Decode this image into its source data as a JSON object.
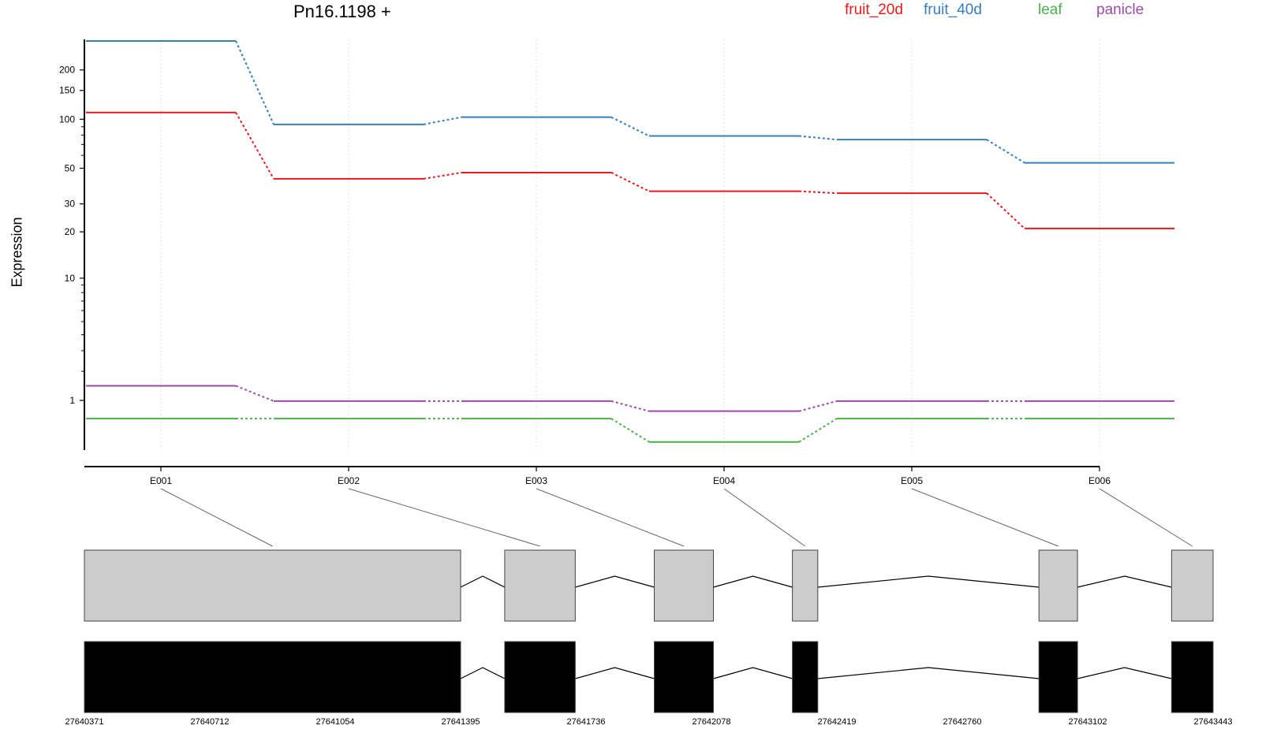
{
  "chart_data": {
    "type": "line",
    "title": "Pn16.1198 +",
    "ylabel": "Expression",
    "xlabel": "",
    "y_scale": "log1p",
    "y_ticks": [
      1,
      10,
      20,
      30,
      50,
      100,
      150,
      200
    ],
    "y_tick_labels": [
      "1",
      "10",
      "20",
      "30",
      "50",
      "100",
      "150",
      "200"
    ],
    "ylim": [
      0,
      300
    ],
    "categories": [
      "E001",
      "E002",
      "E003",
      "E004",
      "E005",
      "E006"
    ],
    "legend_position": "top-right",
    "grid": "vertical-dotted",
    "series": [
      {
        "name": "fruit_20d",
        "color": "#e41a1c",
        "values": [
          110,
          43,
          47,
          36,
          35,
          21
        ]
      },
      {
        "name": "fruit_40d",
        "color": "#377eb8",
        "values": [
          300,
          93,
          103,
          79,
          75,
          54
        ]
      },
      {
        "name": "leaf",
        "color": "#4daf4a",
        "values": [
          0.55,
          0.55,
          0.55,
          0.12,
          0.55,
          0.55
        ]
      },
      {
        "name": "panicle",
        "color": "#984ea3",
        "values": [
          1.45,
          0.98,
          0.98,
          0.72,
          0.98,
          0.98
        ]
      }
    ],
    "gene_model": {
      "genome_ticks": [
        "27640371",
        "27640712",
        "27641054",
        "27641395",
        "27641736",
        "27642078",
        "27642419",
        "27642760",
        "27643102",
        "27643443"
      ],
      "genome_start": 27640371,
      "genome_end": 27643443,
      "exons": [
        {
          "id": "E001",
          "start": 27640371,
          "end": 27641395
        },
        {
          "id": "E002",
          "start": 27641515,
          "end": 27641707
        },
        {
          "id": "E003",
          "start": 27641922,
          "end": 27642083
        },
        {
          "id": "E004",
          "start": 27642298,
          "end": 27642367
        },
        {
          "id": "E005",
          "start": 27642969,
          "end": 27643074
        },
        {
          "id": "E006",
          "start": 27643330,
          "end": 27643443
        }
      ],
      "exon_color_top": "#cccccc",
      "exon_color_bottom": "#000000"
    }
  }
}
